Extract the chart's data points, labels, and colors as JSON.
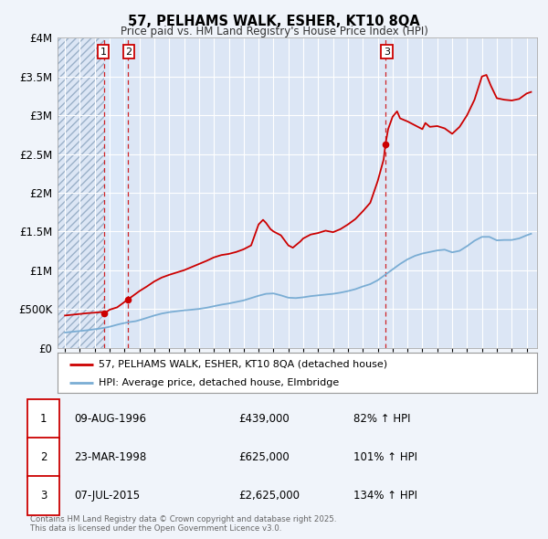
{
  "title": "57, PELHAMS WALK, ESHER, KT10 8QA",
  "subtitle": "Price paid vs. HM Land Registry's House Price Index (HPI)",
  "bg_color": "#f0f4fa",
  "plot_bg_color": "#dce6f5",
  "grid_color": "#ffffff",
  "hatch_region_color": "#c0cce0",
  "light_blue_region": "#ddeeff",
  "legend_line1": "57, PELHAMS WALK, ESHER, KT10 8QA (detached house)",
  "legend_line2": "HPI: Average price, detached house, Elmbridge",
  "red_color": "#cc0000",
  "blue_color": "#7aadd4",
  "sale_dates": [
    1996.61,
    1998.23,
    2015.52
  ],
  "sale_prices": [
    439000,
    625000,
    2625000
  ],
  "sale_labels": [
    "1",
    "2",
    "3"
  ],
  "table_data": [
    [
      "1",
      "09-AUG-1996",
      "£439,000",
      "82% ↑ HPI"
    ],
    [
      "2",
      "23-MAR-1998",
      "£625,000",
      "101% ↑ HPI"
    ],
    [
      "3",
      "07-JUL-2015",
      "£2,625,000",
      "134% ↑ HPI"
    ]
  ],
  "footer": "Contains HM Land Registry data © Crown copyright and database right 2025.\nThis data is licensed under the Open Government Licence v3.0.",
  "ylim": [
    0,
    4000000
  ],
  "yticks": [
    0,
    500000,
    1000000,
    1500000,
    2000000,
    2500000,
    3000000,
    3500000,
    4000000
  ],
  "ytick_labels": [
    "£0",
    "£500K",
    "£1M",
    "£1.5M",
    "£2M",
    "£2.5M",
    "£3M",
    "£3.5M",
    "£4M"
  ],
  "xlim_start": 1993.5,
  "xlim_end": 2025.7,
  "hpi_x": [
    1994.0,
    1994.25,
    1994.5,
    1994.75,
    1995.0,
    1995.25,
    1995.5,
    1995.75,
    1996.0,
    1996.25,
    1996.5,
    1996.75,
    1997.0,
    1997.25,
    1997.5,
    1997.75,
    1998.0,
    1998.25,
    1998.5,
    1998.75,
    1999.0,
    1999.5,
    2000.0,
    2000.5,
    2001.0,
    2001.5,
    2002.0,
    2002.5,
    2003.0,
    2003.5,
    2004.0,
    2004.5,
    2005.0,
    2005.5,
    2006.0,
    2006.5,
    2007.0,
    2007.5,
    2008.0,
    2008.5,
    2009.0,
    2009.5,
    2010.0,
    2010.5,
    2011.0,
    2011.5,
    2012.0,
    2012.5,
    2013.0,
    2013.5,
    2014.0,
    2014.5,
    2015.0,
    2015.5,
    2016.0,
    2016.5,
    2017.0,
    2017.5,
    2018.0,
    2018.5,
    2019.0,
    2019.5,
    2020.0,
    2020.5,
    2021.0,
    2021.5,
    2022.0,
    2022.5,
    2023.0,
    2023.5,
    2024.0,
    2024.5,
    2025.0,
    2025.3
  ],
  "hpi_y": [
    195000,
    200000,
    205000,
    210000,
    215000,
    220000,
    225000,
    232000,
    238000,
    244000,
    252000,
    260000,
    270000,
    283000,
    296000,
    308000,
    318000,
    328000,
    335000,
    342000,
    355000,
    385000,
    415000,
    440000,
    458000,
    470000,
    482000,
    490000,
    500000,
    515000,
    535000,
    555000,
    570000,
    590000,
    610000,
    640000,
    670000,
    695000,
    700000,
    675000,
    645000,
    640000,
    650000,
    665000,
    675000,
    685000,
    695000,
    710000,
    730000,
    755000,
    790000,
    820000,
    870000,
    940000,
    1010000,
    1080000,
    1140000,
    1185000,
    1215000,
    1235000,
    1255000,
    1265000,
    1230000,
    1250000,
    1310000,
    1380000,
    1430000,
    1430000,
    1385000,
    1390000,
    1390000,
    1410000,
    1450000,
    1470000
  ],
  "prop_x": [
    1994.0,
    1994.5,
    1995.0,
    1995.5,
    1996.0,
    1996.5,
    1996.62,
    1997.0,
    1997.5,
    1998.0,
    1998.23,
    1998.5,
    1999.0,
    1999.5,
    2000.0,
    2000.5,
    2001.0,
    2001.5,
    2002.0,
    2002.5,
    2003.0,
    2003.5,
    2004.0,
    2004.5,
    2005.0,
    2005.5,
    2006.0,
    2006.5,
    2007.0,
    2007.3,
    2007.5,
    2007.8,
    2008.0,
    2008.5,
    2009.0,
    2009.3,
    2009.8,
    2010.0,
    2010.5,
    2011.0,
    2011.5,
    2012.0,
    2012.5,
    2013.0,
    2013.5,
    2014.0,
    2014.5,
    2015.0,
    2015.4,
    2015.52,
    2015.7,
    2016.0,
    2016.3,
    2016.5,
    2017.0,
    2017.5,
    2018.0,
    2018.2,
    2018.5,
    2019.0,
    2019.5,
    2020.0,
    2020.5,
    2021.0,
    2021.5,
    2022.0,
    2022.3,
    2022.6,
    2023.0,
    2023.5,
    2024.0,
    2024.5,
    2025.0,
    2025.3
  ],
  "prop_y": [
    415000,
    425000,
    435000,
    445000,
    452000,
    460000,
    439000,
    490000,
    520000,
    590000,
    625000,
    660000,
    730000,
    790000,
    855000,
    905000,
    940000,
    970000,
    1000000,
    1040000,
    1080000,
    1120000,
    1165000,
    1195000,
    1210000,
    1235000,
    1270000,
    1320000,
    1590000,
    1650000,
    1610000,
    1530000,
    1500000,
    1450000,
    1320000,
    1290000,
    1370000,
    1410000,
    1460000,
    1480000,
    1510000,
    1490000,
    1530000,
    1590000,
    1660000,
    1760000,
    1870000,
    2150000,
    2430000,
    2625000,
    2820000,
    2980000,
    3050000,
    2960000,
    2920000,
    2870000,
    2820000,
    2900000,
    2850000,
    2860000,
    2830000,
    2760000,
    2850000,
    3000000,
    3200000,
    3500000,
    3520000,
    3380000,
    3220000,
    3200000,
    3190000,
    3210000,
    3280000,
    3300000
  ]
}
